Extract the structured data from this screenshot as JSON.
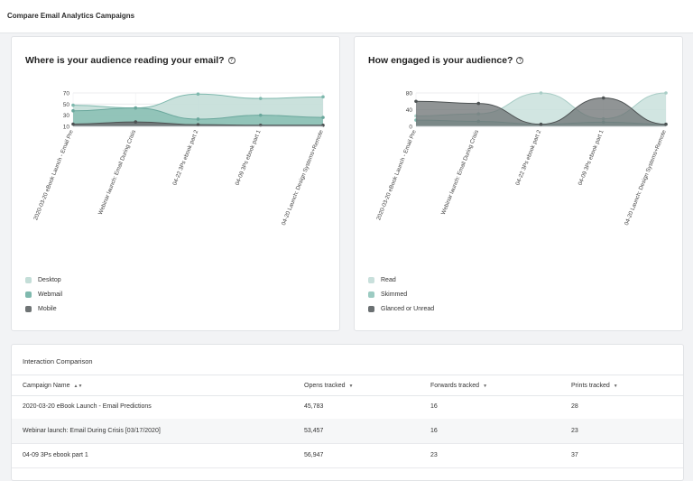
{
  "page": {
    "title": "Compare Email Analytics Campaigns"
  },
  "colors": {
    "desktop": "#c4ded8",
    "webmail": "#7fb9ae",
    "mobile": "#6f7475",
    "read": "#c9e0dc",
    "skimmed": "#9ccbc2",
    "glanced": "#6b7072"
  },
  "charts": [
    {
      "title": "Where is your audience reading your email?",
      "help_icon": "help-circle-icon",
      "chart_data": {
        "type": "area",
        "title": "Where is your audience reading your email?",
        "categories": [
          "2020-03-20 eBook Launch - Email Pre",
          "Webinar launch: Email During Crisis",
          "04-22 3Ps ebook part 2",
          "04-09 3Ps ebook part 1",
          "04-20 Launch: Design Systems+Remote"
        ],
        "y_ticks": [
          10,
          30,
          50,
          70
        ],
        "ylim": [
          10,
          70
        ],
        "grid": true,
        "legend_position": "bottom-left",
        "series": [
          {
            "name": "Desktop",
            "values": [
              48,
              43,
              68,
              60,
              63
            ]
          },
          {
            "name": "Webmail",
            "values": [
              38,
              43,
              23,
              30,
              26
            ]
          },
          {
            "name": "Mobile",
            "values": [
              14,
              18,
              13,
              12,
              12
            ]
          }
        ]
      }
    },
    {
      "title": "How engaged is your audience?",
      "help_icon": "help-circle-icon",
      "chart_data": {
        "type": "area",
        "title": "How engaged is your audience?",
        "categories": [
          "2020-03-20 eBook Launch - Email Pre",
          "Webinar launch: Email During Crisis",
          "04-22 3Ps ebook part 2",
          "04-09 3Ps ebook part 1",
          "04-20 Launch: Design Systems+Remote"
        ],
        "y_ticks": [
          0,
          40,
          80
        ],
        "ylim": [
          0,
          80
        ],
        "grid": true,
        "legend_position": "bottom-left",
        "series": [
          {
            "name": "Read",
            "values": [
              25,
              30,
              80,
              18,
              80
            ]
          },
          {
            "name": "Skimmed",
            "values": [
              15,
              12,
              5,
              10,
              5
            ]
          },
          {
            "name": "Glanced or Unread",
            "values": [
              60,
              55,
              5,
              68,
              5
            ]
          }
        ]
      }
    }
  ],
  "table": {
    "title": "Interaction Comparison",
    "columns": [
      "Campaign Name",
      "Opens tracked",
      "Forwards tracked",
      "Prints tracked"
    ],
    "rows": [
      [
        "2020-03-20 eBook Launch - Email Predictions",
        "45,783",
        "16",
        "28"
      ],
      [
        "Webinar launch: Email During Crisis [03/17/2020]",
        "53,457",
        "16",
        "23"
      ],
      [
        "04-09 3Ps ebook part 1",
        "56,947",
        "23",
        "37"
      ]
    ]
  }
}
